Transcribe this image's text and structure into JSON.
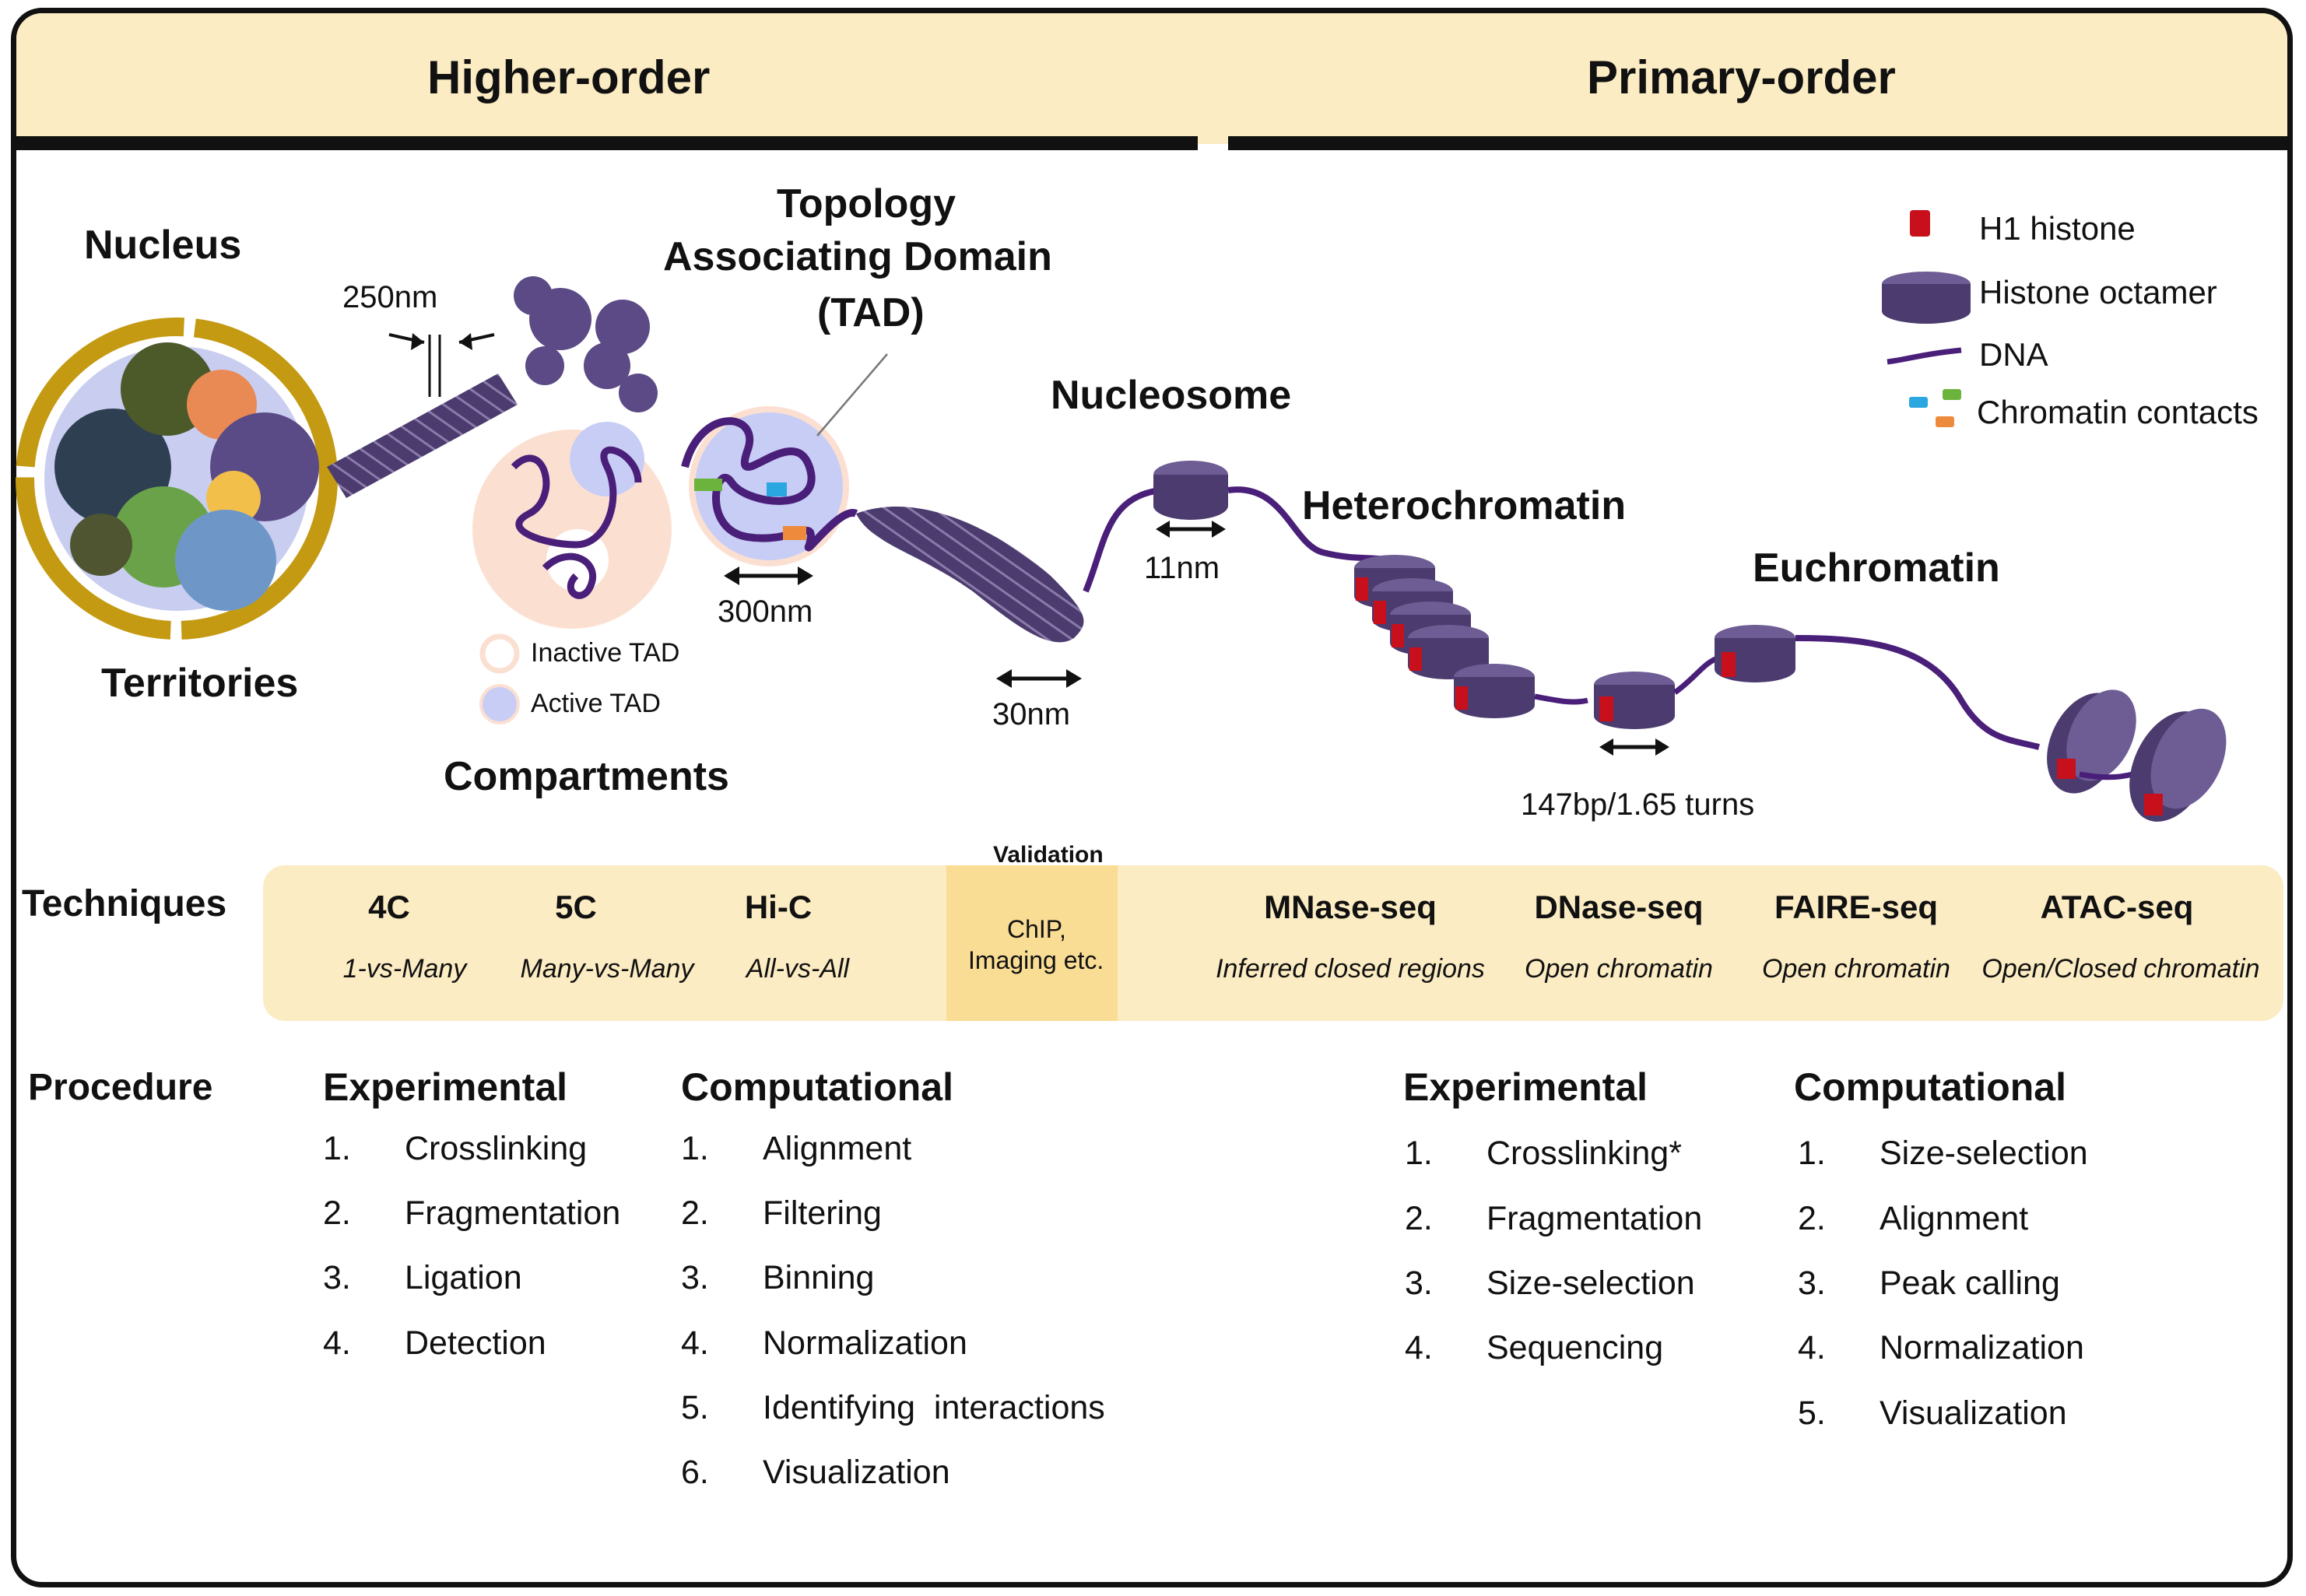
{
  "header": {
    "left_title": "Higher-order",
    "right_title": "Primary-order"
  },
  "labels": {
    "nucleus": "Nucleus",
    "territories": "Territories",
    "nm250": "250nm",
    "tad_line1": "Topology",
    "tad_line2": "Associating Domain",
    "tad_line3": "(TAD)",
    "nm300": "300nm",
    "inactive_tad": "Inactive TAD",
    "active_tad": "Active TAD",
    "compartments": "Compartments",
    "nm30": "30nm",
    "nucleosome": "Nucleosome",
    "nm11": "11nm",
    "heterochromatin": "Heterochromatin",
    "euchromatin": "Euchromatin",
    "turns": "147bp/1.65 turns"
  },
  "legend": {
    "h1": "H1 histone",
    "octamer": "Histone octamer",
    "dna": "DNA",
    "contacts": "Chromatin contacts"
  },
  "colors": {
    "header_band": "#fcecc3",
    "tech_band": "#fcecc3",
    "validation": "#f9dd95",
    "chromatin_purple": "#4b3b6e",
    "dna_purple": "#4a1f7a",
    "h1_red": "#c8101c",
    "nucleus_ring": "#c49a13",
    "nucleus_fill": "#c9cdf0",
    "tad_active": "#c8cdf5",
    "tad_inactive": "#fbe0d2",
    "contact_blue": "#2aa6e0",
    "contact_green": "#6cb33e",
    "contact_orange": "#ed8a3b"
  },
  "techniques": {
    "section_label": "Techniques",
    "validation_title": "Validation",
    "validation_line1": "ChIP,",
    "validation_line2": "Imaging etc.",
    "items": [
      {
        "name": "4C",
        "desc": "1-vs-Many"
      },
      {
        "name": "5C",
        "desc": "Many-vs-Many"
      },
      {
        "name": "Hi-C",
        "desc": "All-vs-All"
      },
      {
        "name": "MNase-seq",
        "desc": "Inferred closed regions"
      },
      {
        "name": "DNase-seq",
        "desc": "Open chromatin"
      },
      {
        "name": "FAIRE-seq",
        "desc": "Open chromatin"
      },
      {
        "name": "ATAC-seq",
        "desc": "Open/Closed chromatin"
      }
    ]
  },
  "procedure": {
    "section_label": "Procedure",
    "higher_experimental": {
      "title": "Experimental",
      "steps": [
        "Crosslinking",
        "Fragmentation",
        "Ligation",
        "Detection"
      ]
    },
    "higher_computational": {
      "title": "Computational",
      "steps": [
        "Alignment",
        "Filtering",
        "Binning",
        "Normalization",
        "Identifying  interactions",
        "Visualization"
      ]
    },
    "primary_experimental": {
      "title": "Experimental",
      "steps": [
        "Crosslinking*",
        "Fragmentation",
        "Size-selection",
        "Sequencing"
      ]
    },
    "primary_computational": {
      "title": "Computational",
      "steps": [
        "Size-selection",
        "Alignment",
        "Peak calling",
        "Normalization",
        "Visualization"
      ]
    }
  }
}
